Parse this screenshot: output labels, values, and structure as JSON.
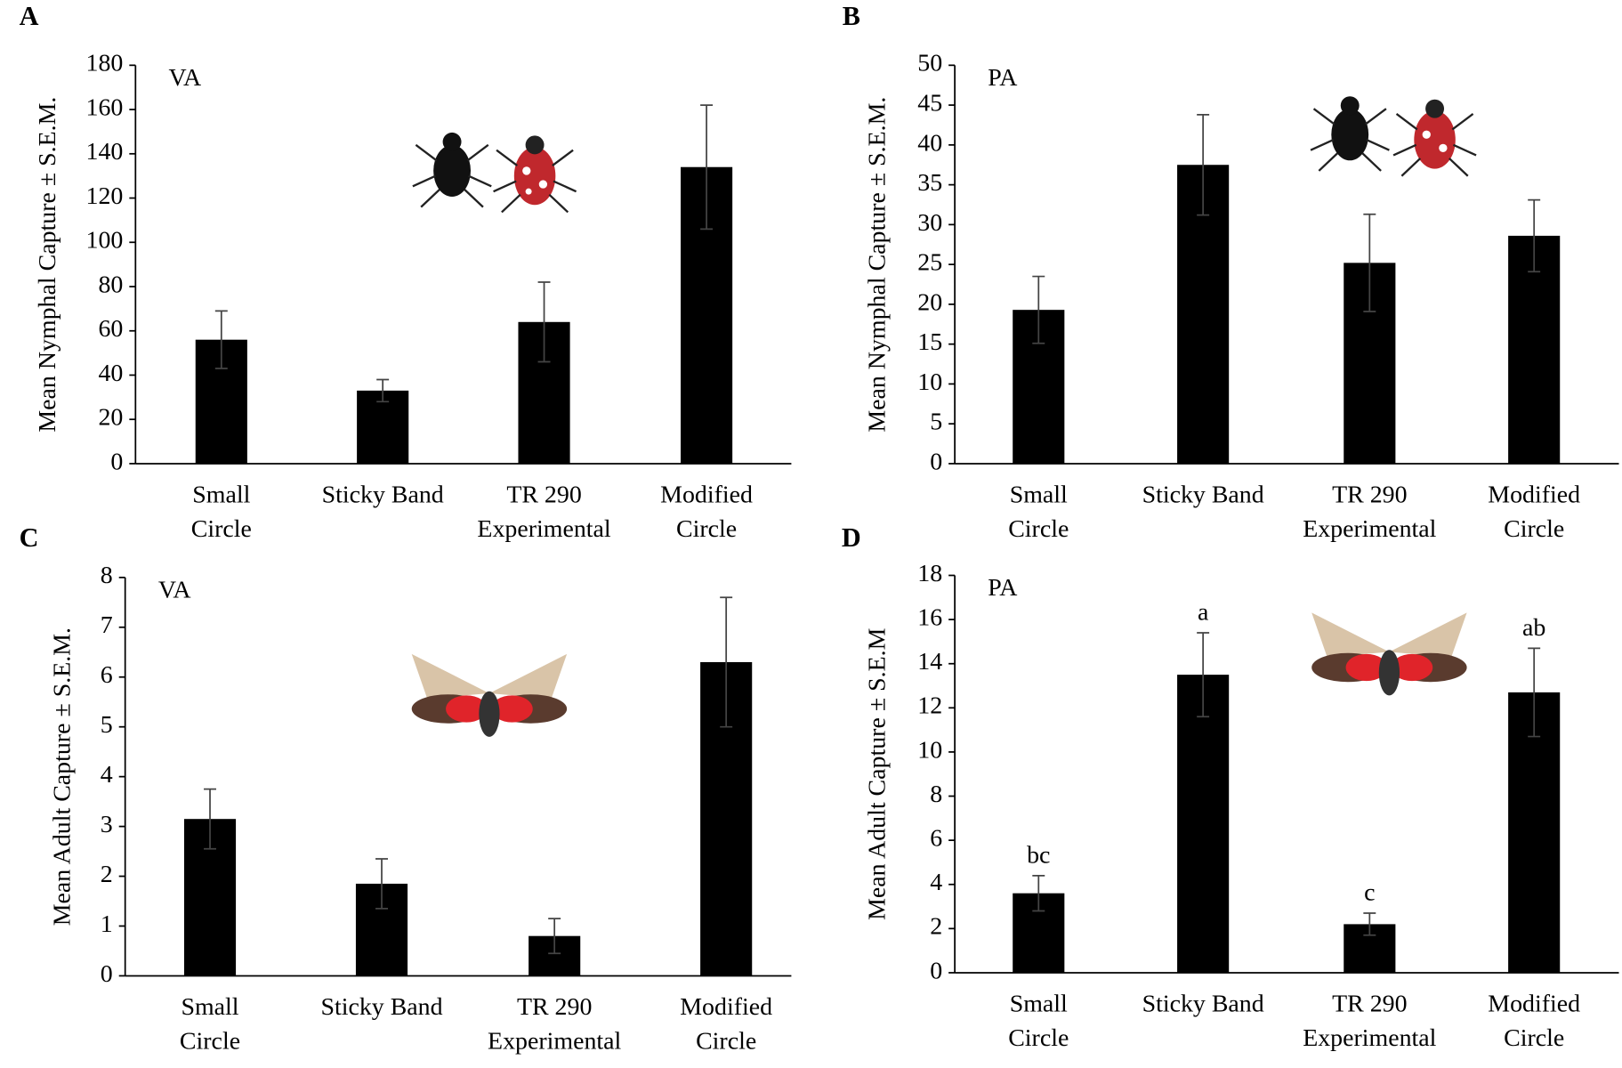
{
  "chart_data": [
    {
      "type": "bar",
      "panel": "A",
      "region": "VA",
      "ylabel": "Mean Nymphal Capture ± S.E.M.",
      "categories": [
        [
          "Small",
          "Circle"
        ],
        [
          "Sticky Band"
        ],
        [
          "TR 290",
          "Experimental"
        ],
        [
          "Modified",
          "Circle"
        ]
      ],
      "values": [
        56,
        33,
        64,
        134
      ],
      "errors": [
        13,
        5,
        18,
        28
      ],
      "color": "#000000",
      "ylim": [
        0,
        180
      ],
      "yticks": [
        0,
        20,
        40,
        60,
        80,
        100,
        120,
        140,
        160,
        180
      ]
    },
    {
      "type": "bar",
      "panel": "B",
      "region": "PA",
      "ylabel": "Mean Nymphal Capture ± S.E.M.",
      "categories": [
        [
          "Small",
          "Circle"
        ],
        [
          "Sticky Band"
        ],
        [
          "TR 290",
          "Experimental"
        ],
        [
          "Modified",
          "Circle"
        ]
      ],
      "values": [
        19.3,
        37.5,
        25.2,
        28.6
      ],
      "errors": [
        4.2,
        6.3,
        6.1,
        4.5
      ],
      "color": "#000000",
      "ylim": [
        0,
        50
      ],
      "yticks": [
        0,
        5,
        10,
        15,
        20,
        25,
        30,
        35,
        40,
        45,
        50
      ]
    },
    {
      "type": "bar",
      "panel": "C",
      "region": "VA",
      "ylabel": "Mean Adult Capture ± S.E.M.",
      "categories": [
        [
          "Small",
          "Circle"
        ],
        [
          "Sticky Band"
        ],
        [
          "TR 290",
          "Experimental"
        ],
        [
          "Modified",
          "Circle"
        ]
      ],
      "values": [
        3.15,
        1.85,
        0.8,
        6.3
      ],
      "errors": [
        0.6,
        0.5,
        0.35,
        1.3
      ],
      "color": "#000000",
      "ylim": [
        0,
        8
      ],
      "yticks": [
        0,
        1,
        2,
        3,
        4,
        5,
        6,
        7,
        8
      ]
    },
    {
      "type": "bar",
      "panel": "D",
      "region": "PA",
      "ylabel": "Mean Adult Capture ± S.E.M",
      "categories": [
        [
          "Small",
          "Circle"
        ],
        [
          "Sticky Band"
        ],
        [
          "TR 290",
          "Experimental"
        ],
        [
          "Modified",
          "Circle"
        ]
      ],
      "values": [
        3.6,
        13.5,
        2.2,
        12.7
      ],
      "errors": [
        0.8,
        1.9,
        0.5,
        2.0
      ],
      "letters": [
        "bc",
        "a",
        "c",
        "ab"
      ],
      "color": "#000000",
      "ylim": [
        0,
        18
      ],
      "yticks": [
        0,
        2,
        4,
        6,
        8,
        10,
        12,
        14,
        16,
        18
      ]
    }
  ]
}
